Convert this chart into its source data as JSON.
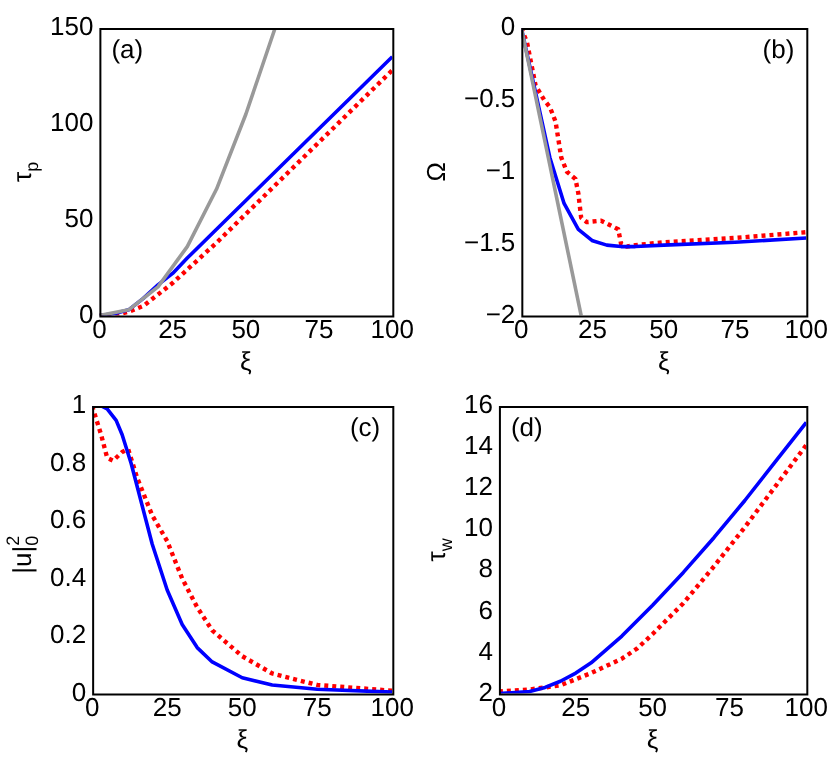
{
  "chart_data": [
    {
      "type": "line",
      "xlabel": "ξ",
      "ylabel": "τ$_{p}$",
      "annotations": [
        "(a)"
      ],
      "xlim": [
        0,
        100
      ],
      "xticks": [
        0,
        25,
        50,
        75,
        100
      ],
      "ylim": [
        0,
        150
      ],
      "yticks": [
        0,
        50,
        100,
        150
      ],
      "grid": false,
      "legend": false,
      "marker": "none",
      "series": [
        {
          "color": "#999999",
          "x": [
            0,
            10,
            20,
            30,
            40,
            50,
            60
          ],
          "values": [
            0,
            3,
            15,
            36,
            66,
            105,
            150
          ]
        },
        {
          "color": "#0000ff",
          "x": [
            0,
            5,
            10,
            15,
            20,
            25,
            30,
            40,
            50,
            60,
            70,
            80,
            90,
            100
          ],
          "values": [
            0,
            1,
            3,
            9,
            16,
            22,
            30,
            45,
            60,
            75,
            90,
            105,
            120,
            135
          ]
        },
        {
          "color": "#ff0000",
          "line_style": "dotted",
          "x": [
            0,
            5,
            10,
            15,
            20,
            25,
            30,
            40,
            50,
            60,
            70,
            80,
            90,
            100
          ],
          "values": [
            0,
            0,
            2,
            5,
            11,
            17,
            24,
            38,
            53,
            68,
            83,
            98,
            113,
            128
          ]
        }
      ]
    },
    {
      "type": "line",
      "xlabel": "ξ",
      "ylabel": "Ω",
      "annotations": [
        "(b)"
      ],
      "xlim": [
        0,
        100
      ],
      "xticks": [
        0,
        25,
        50,
        75,
        100
      ],
      "ylim": [
        -2,
        0
      ],
      "yticks": [
        {
          "value": -2,
          "label": "−2"
        },
        {
          "value": -1.5,
          "label": "−1.5"
        },
        {
          "value": -1,
          "label": "−1"
        },
        {
          "value": -0.5,
          "label": "−0.5"
        },
        0
      ],
      "grid": false,
      "legend": false,
      "marker": "none",
      "series": [
        {
          "color": "#999999",
          "x": [
            0,
            21
          ],
          "values": [
            0,
            -2
          ]
        },
        {
          "color": "#0000ff",
          "x": [
            0,
            5,
            10,
            15,
            20,
            25,
            30,
            35,
            40,
            50,
            75,
            100
          ],
          "values": [
            0,
            -0.45,
            -0.9,
            -1.22,
            -1.4,
            -1.48,
            -1.51,
            -1.52,
            -1.52,
            -1.51,
            -1.49,
            -1.46
          ]
        },
        {
          "color": "#ff0000",
          "line_style": "dotted",
          "x": [
            0,
            2,
            5,
            8,
            10,
            12,
            14,
            16,
            19,
            20,
            21,
            23,
            28,
            32,
            34,
            35,
            37,
            40,
            50,
            75,
            100
          ],
          "values": [
            0,
            -0.1,
            -0.4,
            -0.5,
            -0.55,
            -0.65,
            -0.9,
            -1.0,
            -1.05,
            -1.15,
            -1.32,
            -1.35,
            -1.34,
            -1.38,
            -1.4,
            -1.5,
            -1.52,
            -1.51,
            -1.49,
            -1.46,
            -1.42
          ]
        }
      ]
    },
    {
      "type": "line",
      "xlabel": "ξ",
      "ylabel": "|u|$^{2}$$_{0}$",
      "annotations": [
        "(c)"
      ],
      "xlim": [
        0,
        100
      ],
      "xticks": [
        0,
        25,
        50,
        75,
        100
      ],
      "ylim": [
        0,
        1
      ],
      "yticks": [
        0,
        0.2,
        0.4,
        0.6,
        0.8,
        1
      ],
      "grid": false,
      "legend": false,
      "marker": "none",
      "series": [
        {
          "color": "#0000ff",
          "x": [
            0,
            3,
            5,
            8,
            10,
            13,
            15,
            18,
            20,
            25,
            30,
            35,
            40,
            50,
            60,
            75,
            100
          ],
          "values": [
            1,
            1,
            0.99,
            0.95,
            0.9,
            0.8,
            0.72,
            0.6,
            0.52,
            0.36,
            0.24,
            0.16,
            0.11,
            0.055,
            0.03,
            0.015,
            0.005
          ]
        },
        {
          "color": "#ff0000",
          "line_style": "dotted",
          "x": [
            0,
            3,
            5,
            7,
            10,
            12,
            15,
            20,
            25,
            30,
            35,
            40,
            50,
            60,
            75,
            100
          ],
          "values": [
            1,
            0.9,
            0.82,
            0.81,
            0.84,
            0.85,
            0.75,
            0.62,
            0.53,
            0.4,
            0.3,
            0.22,
            0.13,
            0.07,
            0.03,
            0.01
          ]
        }
      ]
    },
    {
      "type": "line",
      "xlabel": "ξ",
      "ylabel": "τ$_{w}$",
      "annotations": [
        "(d)"
      ],
      "xlim": [
        0,
        100
      ],
      "xticks": [
        0,
        25,
        50,
        75,
        100
      ],
      "ylim": [
        2,
        16
      ],
      "yticks": [
        2,
        4,
        6,
        8,
        10,
        12,
        14,
        16
      ],
      "grid": false,
      "legend": false,
      "marker": "none",
      "series": [
        {
          "color": "#0000ff",
          "x": [
            0,
            10,
            15,
            20,
            25,
            30,
            40,
            50,
            60,
            70,
            80,
            90,
            100
          ],
          "values": [
            2,
            2.1,
            2.3,
            2.6,
            3.0,
            3.5,
            4.8,
            6.3,
            7.9,
            9.6,
            11.4,
            13.3,
            15.2
          ]
        },
        {
          "color": "#ff0000",
          "line_style": "dotted",
          "x": [
            0,
            10,
            20,
            30,
            40,
            45,
            50,
            60,
            70,
            80,
            90,
            100
          ],
          "values": [
            2.1,
            2.2,
            2.4,
            3.0,
            3.7,
            4.2,
            4.9,
            6.4,
            8.2,
            10.1,
            12.1,
            14.1
          ]
        }
      ]
    }
  ]
}
